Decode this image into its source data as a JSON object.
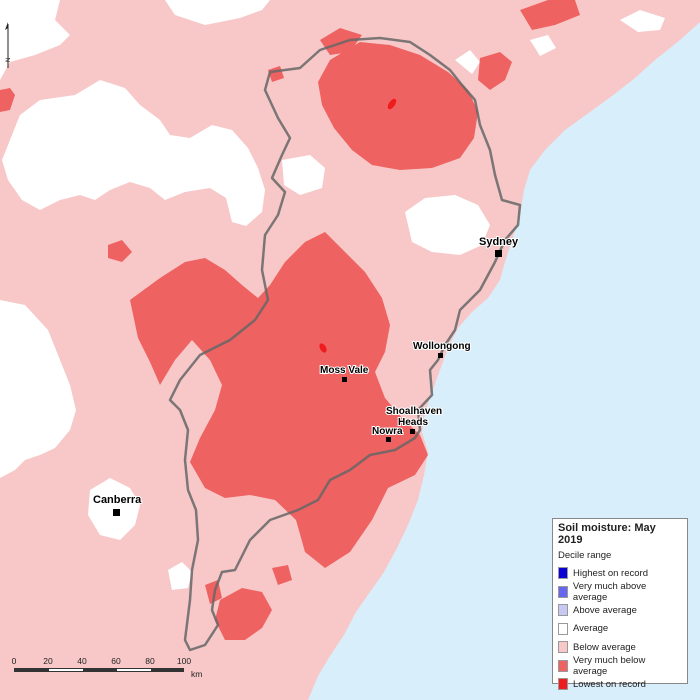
{
  "legend": {
    "title": "Soil moisture: May 2019",
    "subtitle": "Decile range",
    "items": [
      {
        "label": "Highest on record",
        "color": "#0b00d6"
      },
      {
        "label": "Very much above average",
        "color": "#6666ee"
      },
      {
        "label": "Above average",
        "color": "#c8c8f4"
      },
      {
        "label": "Average",
        "color": "#ffffff"
      },
      {
        "label": "Below average",
        "color": "#f8c8c8"
      },
      {
        "label": "Very much below average",
        "color": "#ee6262"
      },
      {
        "label": "Lowest on record",
        "color": "#ee1c1c"
      }
    ]
  },
  "places": {
    "sydney": "Sydney",
    "wollongong": "Wollongong",
    "moss_vale": "Moss Vale",
    "shoalhaven_1": "Shoalhaven",
    "shoalhaven_2": "Heads",
    "nowra": "Nowra",
    "canberra": "Canberra"
  },
  "scale": {
    "ticks": [
      "0",
      "20",
      "40",
      "60",
      "80",
      "100"
    ],
    "unit": "km"
  },
  "north": "N",
  "colors": {
    "ocean": "#d8eefb",
    "land_below_average": "#f8c8c8",
    "very_much_below": "#ee6262",
    "lowest_on_record": "#ee1c1c",
    "average": "#ffffff"
  }
}
